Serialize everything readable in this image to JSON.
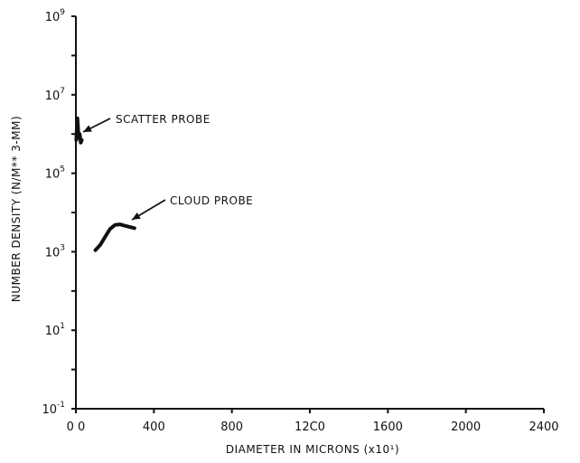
{
  "chart_data": {
    "type": "line",
    "title": "",
    "xlabel": "DIAMETER  IN MICRONS (x10¹)",
    "ylabel": "NUMBER  DENSITY  (N/M** 3-MM)",
    "xlim": [
      0,
      2400
    ],
    "ylim_log10": [
      -1,
      9
    ],
    "y_scale": "log",
    "grid": false,
    "x_ticks": [
      {
        "value": 0,
        "label": "0 0"
      },
      {
        "value": 400,
        "label": "400"
      },
      {
        "value": 800,
        "label": "800"
      },
      {
        "value": 1200,
        "label": "12C0"
      },
      {
        "value": 1600,
        "label": "1600"
      },
      {
        "value": 2000,
        "label": "2000"
      },
      {
        "value": 2400,
        "label": "2400"
      }
    ],
    "y_major_ticks": [
      {
        "exp": -1,
        "base": "10",
        "sup": "-1"
      },
      {
        "exp": 1,
        "base": "10",
        "sup": "1"
      },
      {
        "exp": 3,
        "base": "10",
        "sup": "3"
      },
      {
        "exp": 5,
        "base": "10",
        "sup": "5"
      },
      {
        "exp": 7,
        "base": "10",
        "sup": "7"
      },
      {
        "exp": 9,
        "base": "10",
        "sup": "9"
      }
    ],
    "series": [
      {
        "name": "SCATTER PROBE",
        "color": "#111111",
        "points": [
          {
            "x": 2,
            "y": 700000
          },
          {
            "x": 5,
            "y": 1500000
          },
          {
            "x": 8,
            "y": 2500000
          },
          {
            "x": 12,
            "y": 1200000
          },
          {
            "x": 16,
            "y": 800000
          },
          {
            "x": 20,
            "y": 1000000
          },
          {
            "x": 25,
            "y": 600000
          },
          {
            "x": 30,
            "y": 700000
          }
        ]
      },
      {
        "name": "CLOUD PROBE",
        "color": "#111111",
        "points": [
          {
            "x": 100,
            "y": 1100
          },
          {
            "x": 125,
            "y": 1500
          },
          {
            "x": 150,
            "y": 2400
          },
          {
            "x": 175,
            "y": 3800
          },
          {
            "x": 200,
            "y": 4800
          },
          {
            "x": 225,
            "y": 5000
          },
          {
            "x": 250,
            "y": 4600
          },
          {
            "x": 275,
            "y": 4300
          },
          {
            "x": 300,
            "y": 4000
          }
        ]
      }
    ],
    "annotations": [
      {
        "text": "SCATTER PROBE",
        "series": 0
      },
      {
        "text": "CLOUD PROBE",
        "series": 1
      }
    ]
  }
}
